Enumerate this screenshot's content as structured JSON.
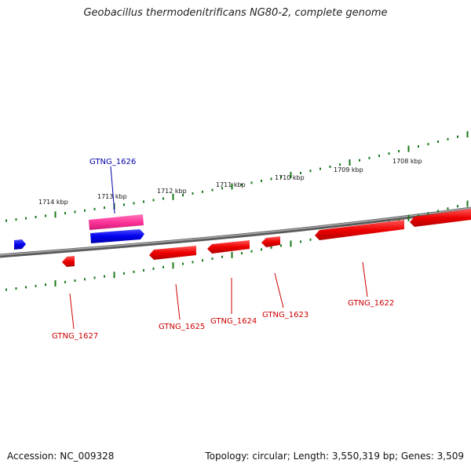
{
  "title": "Geobacillus thermodenitrificans NG80-2, complete genome",
  "footer": {
    "accession": "Accession: NC_009328",
    "summary": "Topology: circular; Length: 3,550,319 bp; Genes: 3,509"
  },
  "colors": {
    "backbone": "#888888",
    "tick": "#1a7a1a",
    "forward_gene": "#0000ee",
    "reverse_gene": "#ee0000",
    "highlight_gene": "#ff3399",
    "forward_label": "#0000aa",
    "reverse_label": "#cc0000"
  },
  "scale": {
    "tick_labels": [
      "1714 kbp",
      "1713 kbp",
      "1712 kbp",
      "1711 kbp",
      "1710 kbp",
      "1709 kbp",
      "1708 kbp"
    ]
  },
  "genes": {
    "labels": [
      "GTNG_1626",
      "GTNG_1627",
      "GTNG_1625",
      "GTNG_1624",
      "GTNG_1623",
      "GTNG_1622"
    ]
  }
}
